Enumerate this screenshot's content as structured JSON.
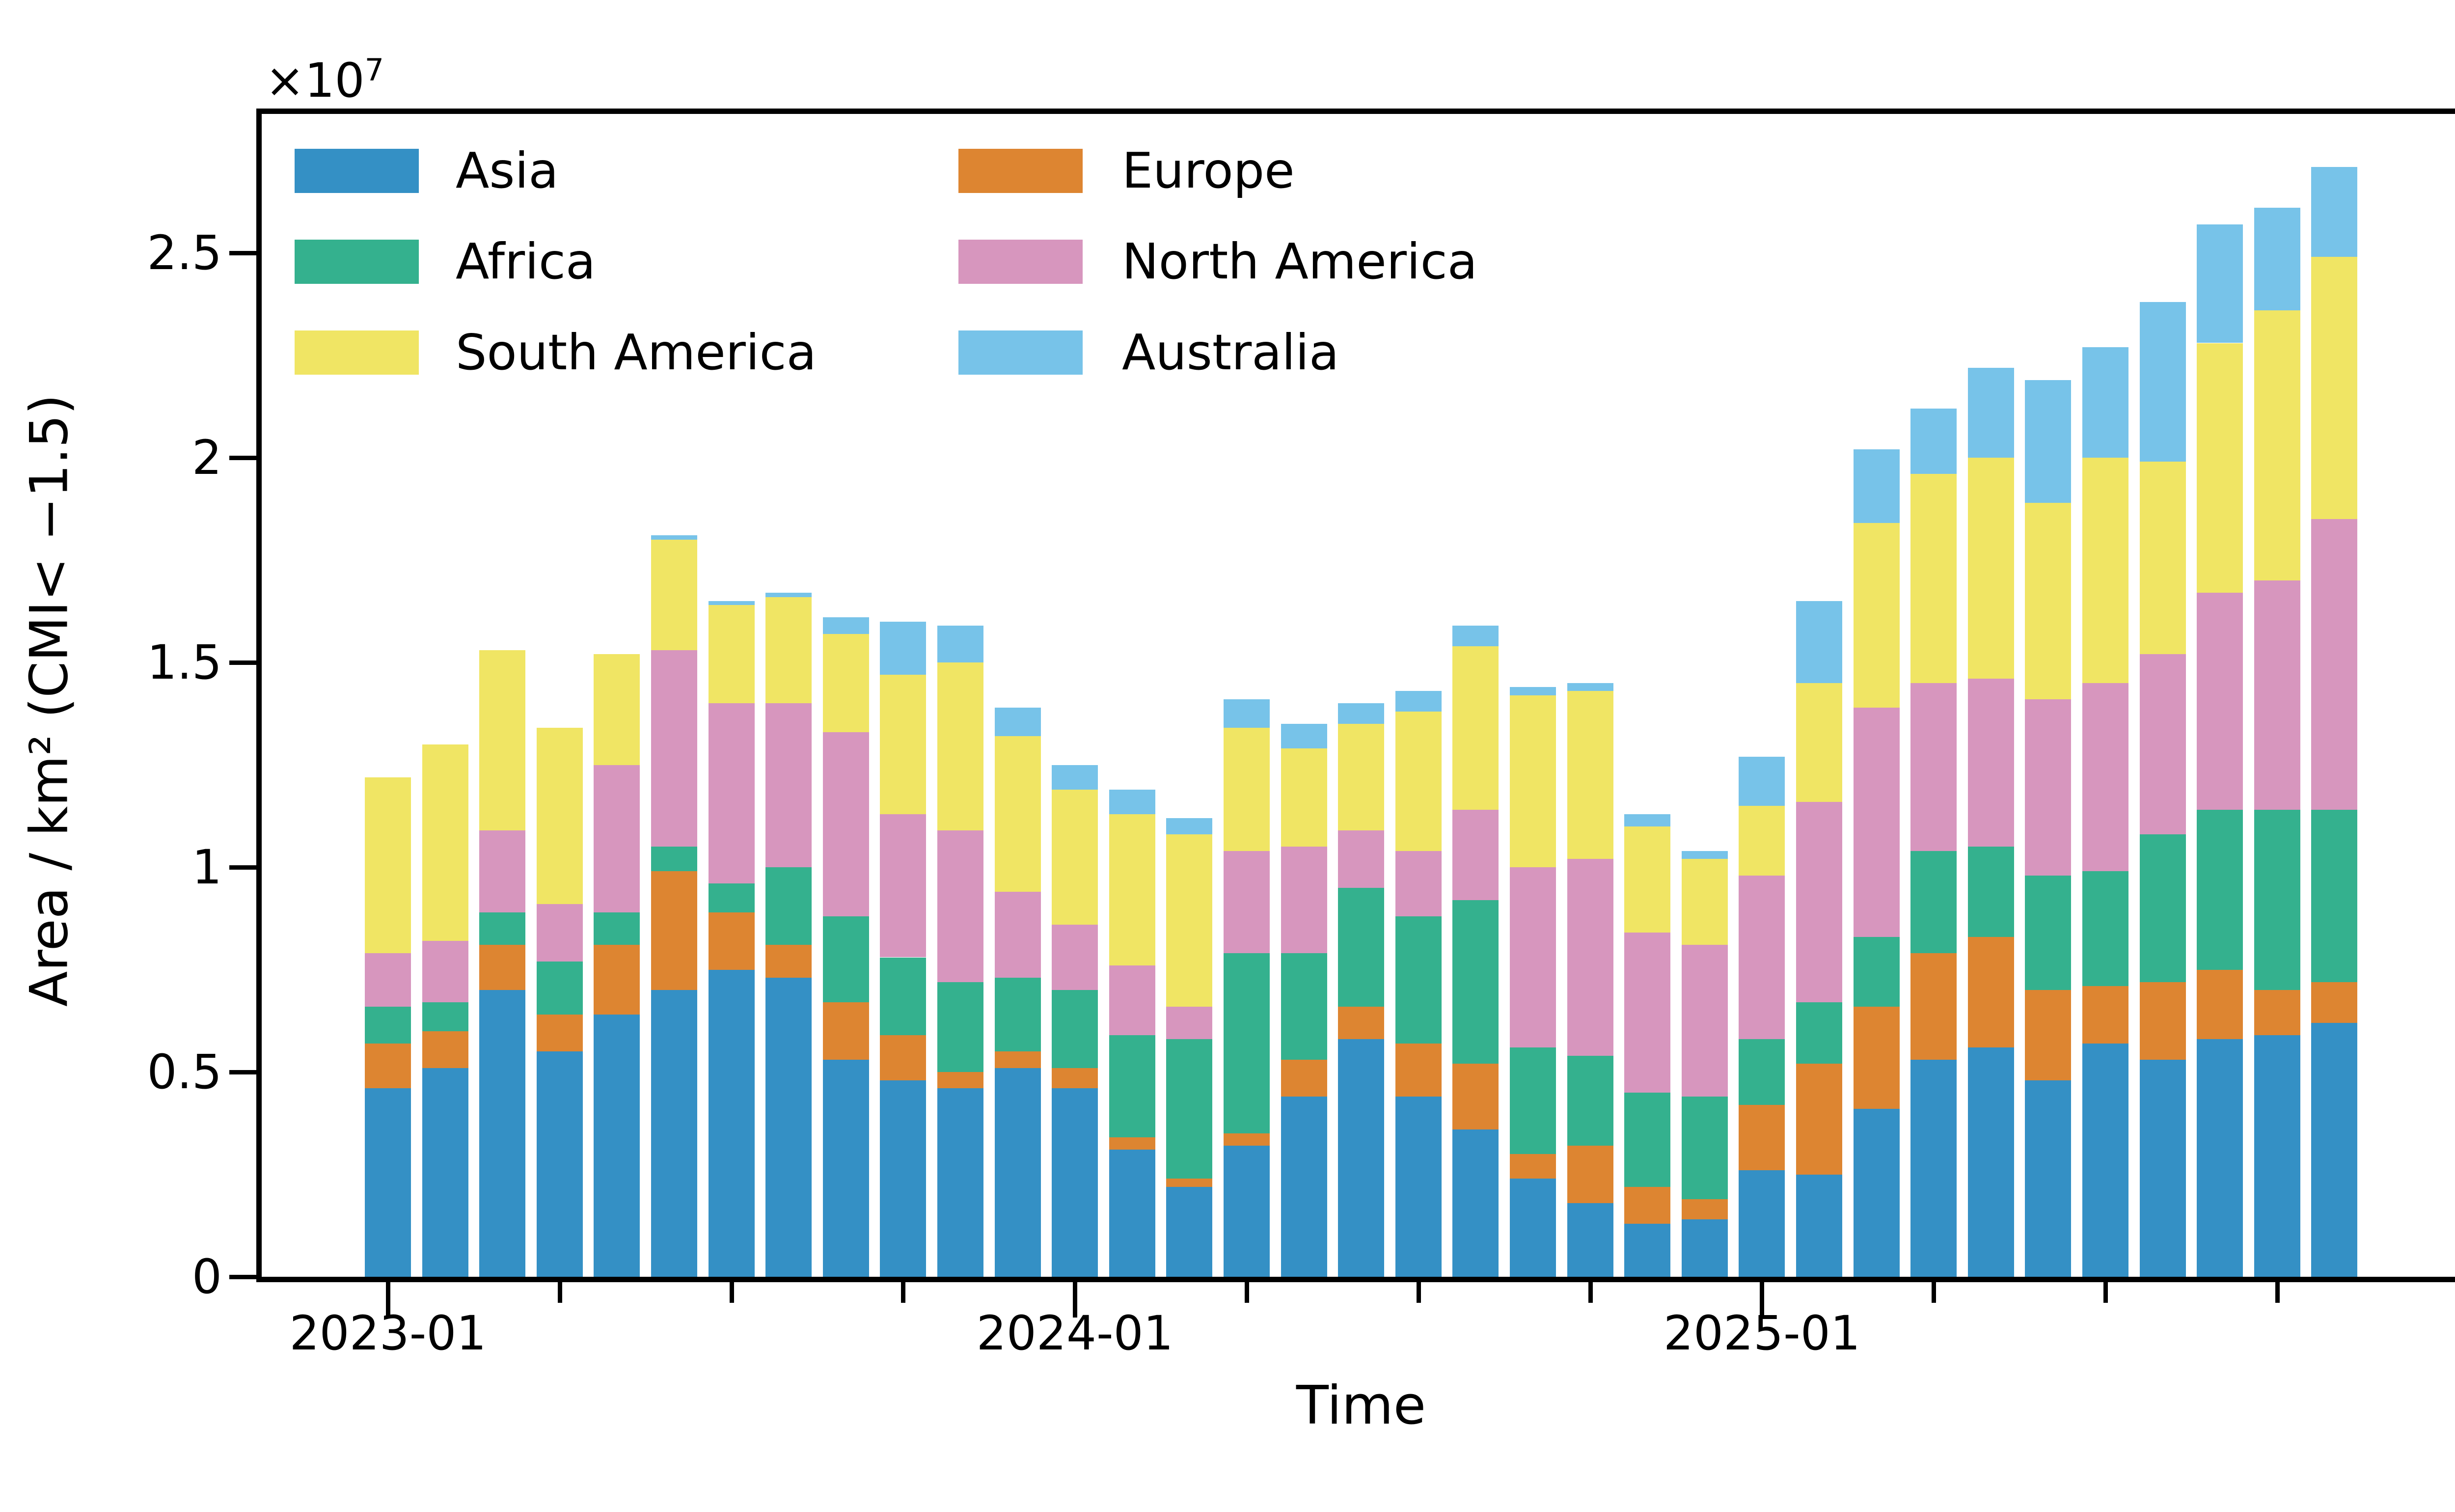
{
  "chart_data": {
    "type": "bar",
    "stacked": true,
    "title": "",
    "xlabel": "Time",
    "ylabel": "Area / km² (CMI< −1.5)",
    "offset_base": "×10",
    "offset_exponent": "7",
    "unit_note": "series values are in units of 1e6 km² (axis shows ×10⁷)",
    "ylim_e6": [
      0,
      28.4
    ],
    "grid": false,
    "legend_position": "upper-left-inside-two-columns",
    "background_color": "#ffffff",
    "axis_color": "#000000",
    "x": [
      "2023-01",
      "2023-02",
      "2023-03",
      "2023-04",
      "2023-05",
      "2023-06",
      "2023-07",
      "2023-08",
      "2023-09",
      "2023-10",
      "2023-11",
      "2023-12",
      "2024-01",
      "2024-02",
      "2024-03",
      "2024-04",
      "2024-05",
      "2024-06",
      "2024-07",
      "2024-08",
      "2024-09",
      "2024-10",
      "2024-11",
      "2024-12",
      "2025-01",
      "2025-02",
      "2025-03",
      "2025-04",
      "2025-05",
      "2025-06",
      "2025-07",
      "2025-08",
      "2025-09",
      "2025-10",
      "2025-11"
    ],
    "series": [
      {
        "name": "Asia",
        "color": "#3490c5",
        "values": [
          4.6,
          5.1,
          7.0,
          5.5,
          6.4,
          7.0,
          7.5,
          7.3,
          5.3,
          4.8,
          4.6,
          5.1,
          4.6,
          3.1,
          2.2,
          3.2,
          4.4,
          5.8,
          4.4,
          3.6,
          2.4,
          1.8,
          1.3,
          1.4,
          2.6,
          2.5,
          4.1,
          5.3,
          5.6,
          4.8,
          5.7,
          5.3,
          5.8,
          5.9,
          6.2
        ]
      },
      {
        "name": "Europe",
        "color": "#dd8531",
        "values": [
          1.1,
          0.9,
          1.1,
          0.9,
          1.7,
          2.9,
          1.4,
          0.8,
          1.4,
          1.1,
          0.4,
          0.4,
          0.5,
          0.3,
          0.2,
          0.3,
          0.9,
          0.8,
          1.3,
          1.6,
          0.6,
          1.4,
          0.9,
          0.5,
          1.6,
          2.7,
          2.5,
          2.6,
          2.7,
          2.2,
          1.4,
          1.9,
          1.7,
          1.1,
          1.0
        ]
      },
      {
        "name": "Africa",
        "color": "#34b18e",
        "values": [
          0.9,
          0.7,
          0.8,
          1.3,
          0.8,
          0.6,
          0.7,
          1.9,
          2.1,
          1.9,
          2.2,
          1.8,
          1.9,
          2.5,
          3.4,
          4.4,
          2.6,
          2.9,
          3.1,
          4.0,
          2.6,
          2.2,
          2.3,
          2.5,
          1.6,
          1.5,
          1.7,
          2.5,
          2.2,
          2.8,
          2.8,
          3.6,
          3.9,
          4.4,
          4.2
        ]
      },
      {
        "name": "North America",
        "color": "#d796be",
        "values": [
          1.3,
          1.5,
          2.0,
          1.4,
          3.6,
          4.8,
          4.4,
          4.0,
          4.5,
          3.5,
          3.7,
          2.1,
          1.6,
          1.7,
          0.8,
          2.5,
          2.6,
          1.4,
          1.6,
          2.2,
          4.4,
          4.8,
          3.9,
          3.7,
          4.0,
          4.9,
          5.6,
          4.1,
          4.1,
          4.3,
          4.6,
          4.4,
          5.3,
          5.6,
          7.1
        ]
      },
      {
        "name": "South America",
        "color": "#f0e564",
        "values": [
          4.3,
          4.8,
          4.4,
          4.3,
          2.7,
          2.7,
          2.4,
          2.6,
          2.4,
          3.4,
          4.1,
          3.8,
          3.3,
          3.7,
          4.2,
          3.0,
          2.4,
          2.6,
          3.4,
          4.0,
          4.2,
          4.1,
          2.6,
          2.1,
          1.7,
          2.9,
          4.5,
          5.1,
          5.4,
          4.8,
          5.5,
          4.7,
          6.1,
          6.6,
          6.4
        ]
      },
      {
        "name": "Australia",
        "color": "#77c3e9",
        "values": [
          0,
          0,
          0,
          0,
          0,
          0.1,
          0.1,
          0.1,
          0.4,
          1.3,
          0.9,
          0.7,
          0.6,
          0.6,
          0.4,
          0.7,
          0.6,
          0.5,
          0.5,
          0.5,
          0.2,
          0.2,
          0.3,
          0.2,
          1.2,
          2.0,
          1.8,
          1.6,
          2.2,
          3.0,
          2.7,
          3.9,
          2.9,
          2.5,
          2.2
        ]
      }
    ],
    "y_ticks": [
      {
        "v": 0,
        "label": "0"
      },
      {
        "v": 5,
        "label": "0.5"
      },
      {
        "v": 10,
        "label": "1"
      },
      {
        "v": 15,
        "label": "1.5"
      },
      {
        "v": 20,
        "label": "2"
      },
      {
        "v": 25,
        "label": "2.5"
      }
    ],
    "x_major_ticks": [
      {
        "month_index": 0,
        "label": "2023-01"
      },
      {
        "month_index": 12,
        "label": "2024-01"
      },
      {
        "month_index": 24,
        "label": "2025-01"
      }
    ],
    "x_minor_tick_month_indices": [
      3,
      6,
      9,
      15,
      18,
      21,
      27,
      30,
      33
    ],
    "legend_columns": [
      [
        "Asia",
        "Africa",
        "South America"
      ],
      [
        "Europe",
        "North America",
        "Australia"
      ]
    ]
  }
}
